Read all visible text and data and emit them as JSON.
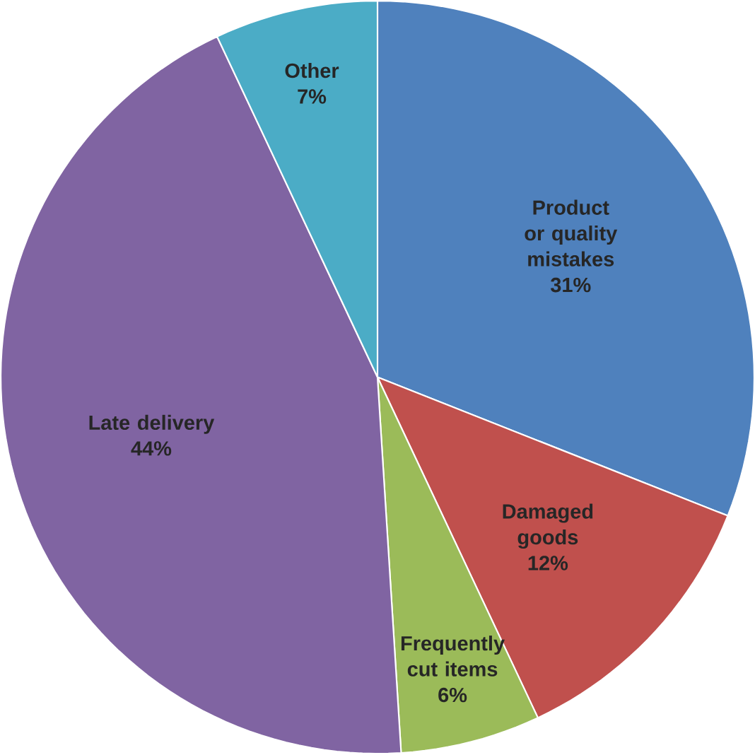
{
  "chart_data": {
    "type": "pie",
    "categories": [
      "Product or quality mistakes",
      "Damaged goods",
      "Frequently cut items",
      "Late delivery",
      "Other"
    ],
    "values": [
      31,
      12,
      6,
      44,
      7
    ],
    "value_labels": [
      "31%",
      "12%",
      "6%",
      "44%",
      "7%"
    ],
    "colors": [
      "#4f81bd",
      "#c0504d",
      "#9bbb59",
      "#8064a2",
      "#4bacc6"
    ]
  }
}
